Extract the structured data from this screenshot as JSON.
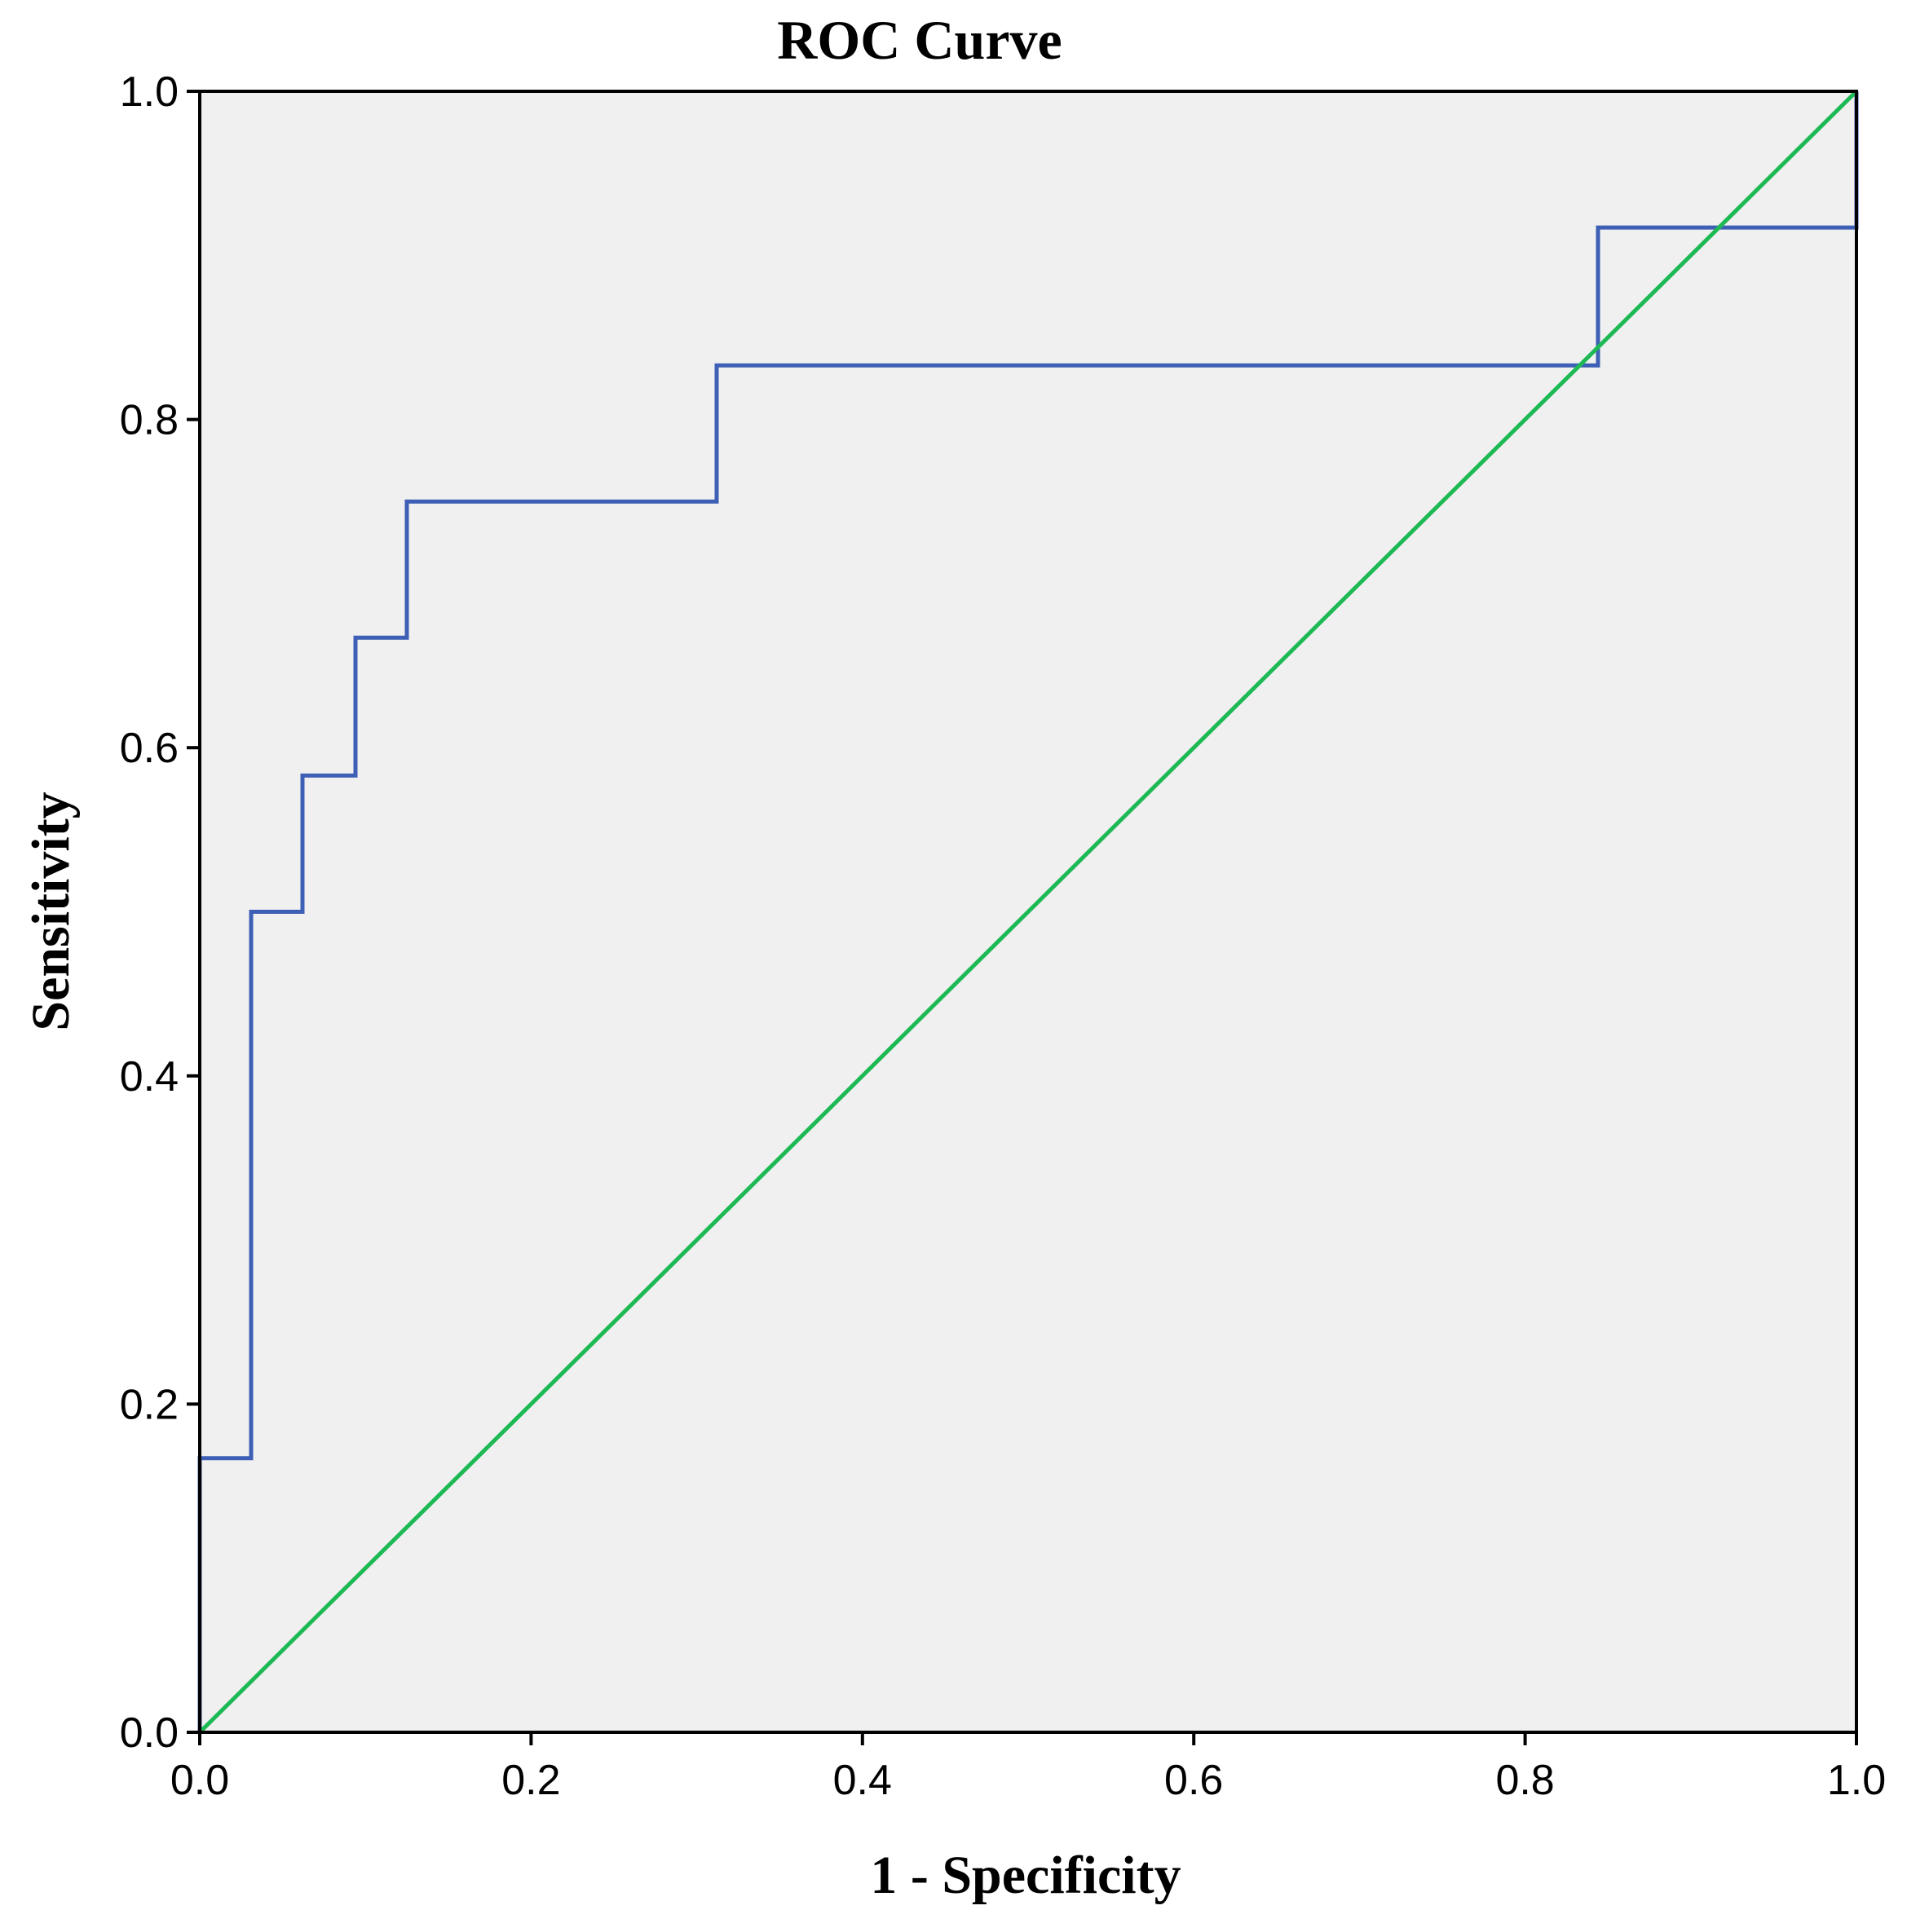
{
  "chart_data": {
    "type": "line",
    "title": "ROC Curve",
    "xlabel": "1 - Specificity",
    "ylabel": "Sensitivity",
    "xlim": [
      0,
      1
    ],
    "ylim": [
      0,
      1
    ],
    "x_ticks": [
      "0.0",
      "0.2",
      "0.4",
      "0.6",
      "0.8",
      "1.0"
    ],
    "y_ticks": [
      "0.0",
      "0.2",
      "0.4",
      "0.6",
      "0.8",
      "1.0"
    ],
    "grid": false,
    "plot_background": "#f0f0f0",
    "series": [
      {
        "color": "#3d5fb5",
        "step": true,
        "x": [
          0.0,
          0.0,
          0.031,
          0.031,
          0.062,
          0.062,
          0.094,
          0.094,
          0.125,
          0.125,
          0.312,
          0.312,
          0.844,
          0.844,
          1.0,
          1.0
        ],
        "y": [
          0.0,
          0.167,
          0.167,
          0.5,
          0.5,
          0.583,
          0.583,
          0.667,
          0.667,
          0.75,
          0.75,
          0.833,
          0.833,
          0.917,
          0.917,
          1.0
        ]
      },
      {
        "color": "#1db954",
        "step": false,
        "x": [
          0.0,
          1.0
        ],
        "y": [
          0.0,
          1.0
        ]
      }
    ]
  }
}
